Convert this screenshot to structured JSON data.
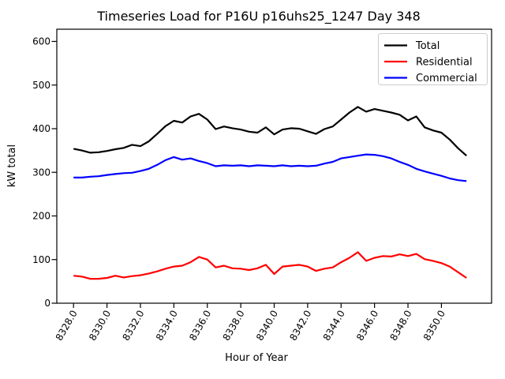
{
  "chart_data": {
    "type": "line",
    "title": "Timeseries Load for P16U p16uhs25_1247  Day 348",
    "xlabel": "Hour of Year",
    "ylabel": "kW total",
    "xlim": [
      8327.0,
      8353.0
    ],
    "ylim": [
      0,
      628
    ],
    "grid": false,
    "legend_position": "upper right",
    "y_ticks": [
      0,
      100,
      200,
      300,
      400,
      500,
      600
    ],
    "y_tick_labels": [
      "0",
      "100",
      "200",
      "300",
      "400",
      "500",
      "600"
    ],
    "x_ticks": [
      8328,
      8330,
      8332,
      8334,
      8336,
      8338,
      8340,
      8342,
      8344,
      8346,
      8348,
      8350
    ],
    "x_tick_labels": [
      "8328.0",
      "8330.0",
      "8332.0",
      "8334.0",
      "8336.0",
      "8338.0",
      "8340.0",
      "8342.0",
      "8344.0",
      "8346.0",
      "8348.0",
      "8350.0"
    ],
    "x": [
      8328.0,
      8328.5,
      8329.0,
      8329.5,
      8330.0,
      8330.5,
      8331.0,
      8331.5,
      8332.0,
      8332.5,
      8333.0,
      8333.5,
      8334.0,
      8334.5,
      8335.0,
      8335.5,
      8336.0,
      8336.5,
      8337.0,
      8337.5,
      8338.0,
      8338.5,
      8339.0,
      8339.5,
      8340.0,
      8340.5,
      8341.0,
      8341.5,
      8342.0,
      8342.5,
      8343.0,
      8343.5,
      8344.0,
      8344.5,
      8345.0,
      8345.5,
      8346.0,
      8346.5,
      8347.0,
      8347.5,
      8348.0,
      8348.5,
      8349.0,
      8349.5,
      8350.0,
      8350.5,
      8351.0,
      8351.5
    ],
    "series": [
      {
        "name": "Total",
        "color": "#000000",
        "values": [
          354,
          350,
          345,
          346,
          349,
          353,
          356,
          363,
          360,
          371,
          388,
          406,
          418,
          414,
          428,
          434,
          421,
          399,
          405,
          401,
          398,
          393,
          391,
          403,
          387,
          398,
          401,
          400,
          394,
          388,
          399,
          405,
          421,
          437,
          450,
          439,
          445,
          441,
          437,
          432,
          419,
          428,
          403,
          396,
          391,
          375,
          355,
          338
        ]
      },
      {
        "name": "Residential",
        "color": "#ff0000",
        "values": [
          63,
          61,
          56,
          56,
          58,
          63,
          59,
          62,
          64,
          68,
          73,
          79,
          84,
          86,
          94,
          106,
          100,
          82,
          86,
          80,
          79,
          76,
          80,
          88,
          67,
          84,
          86,
          88,
          84,
          74,
          79,
          82,
          94,
          104,
          117,
          97,
          104,
          108,
          107,
          112,
          108,
          113,
          101,
          97,
          92,
          84,
          71,
          58
        ]
      },
      {
        "name": "Commercial",
        "color": "#0000ff",
        "values": [
          288,
          288,
          290,
          291,
          294,
          296,
          298,
          299,
          303,
          308,
          317,
          328,
          335,
          329,
          332,
          326,
          321,
          314,
          316,
          315,
          316,
          314,
          316,
          315,
          314,
          316,
          314,
          315,
          314,
          315,
          320,
          324,
          332,
          335,
          338,
          341,
          340,
          337,
          332,
          324,
          317,
          308,
          302,
          297,
          292,
          286,
          282,
          280
        ]
      }
    ]
  }
}
